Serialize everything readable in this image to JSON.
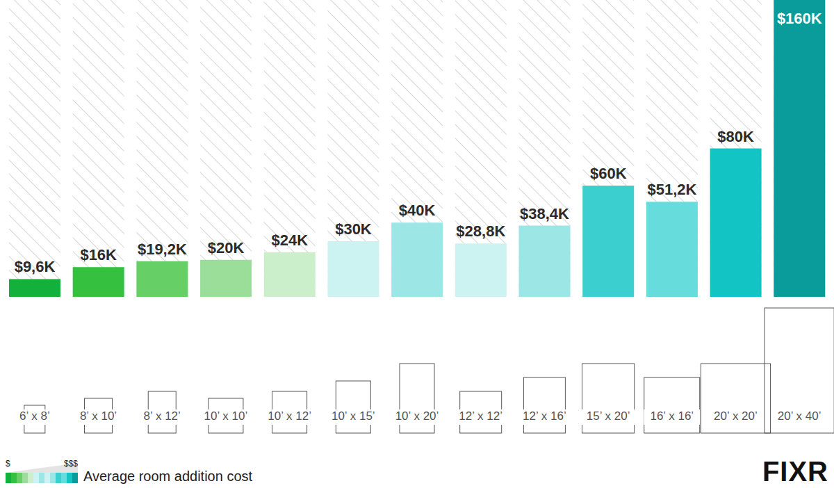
{
  "chart_data": {
    "type": "bar",
    "categories": [
      "6’ x 8’",
      "8’ x 10’",
      "8’ x 12’",
      "10’ x 10’",
      "10’ x 12’",
      "10’ x 15’",
      "10’ x 20’",
      "12’ x 12’",
      "12’ x 16’",
      "15’ x 20’",
      "16’ x 16’",
      "20’ x 20’",
      "20’ x 40’"
    ],
    "values": [
      9.6,
      16,
      19.2,
      20,
      24,
      30,
      40,
      28.8,
      38.4,
      60,
      51.2,
      80,
      160
    ],
    "value_labels": [
      "$9,6K",
      "$16K",
      "$19,2K",
      "$20K",
      "$24K",
      "$30K",
      "$40K",
      "$28,8K",
      "$38,4K",
      "$60K",
      "$51,2K",
      "$80K",
      "$160K"
    ],
    "colors": [
      "#13b13b",
      "#35c03f",
      "#66cf66",
      "#9ade9a",
      "#cbefcb",
      "#cdf2f2",
      "#9de6e6",
      "#cdf2f2",
      "#9de6e6",
      "#3ccfcf",
      "#66dcdc",
      "#12c4c4",
      "#0a9b9b"
    ],
    "ylim": [
      0,
      160
    ],
    "data_labels": true,
    "tick_labels": "x",
    "grid": false,
    "legend_title": "Average room addition cost",
    "legend_scale_labels": [
      "$",
      "$$$"
    ],
    "brand": "FIXR"
  }
}
